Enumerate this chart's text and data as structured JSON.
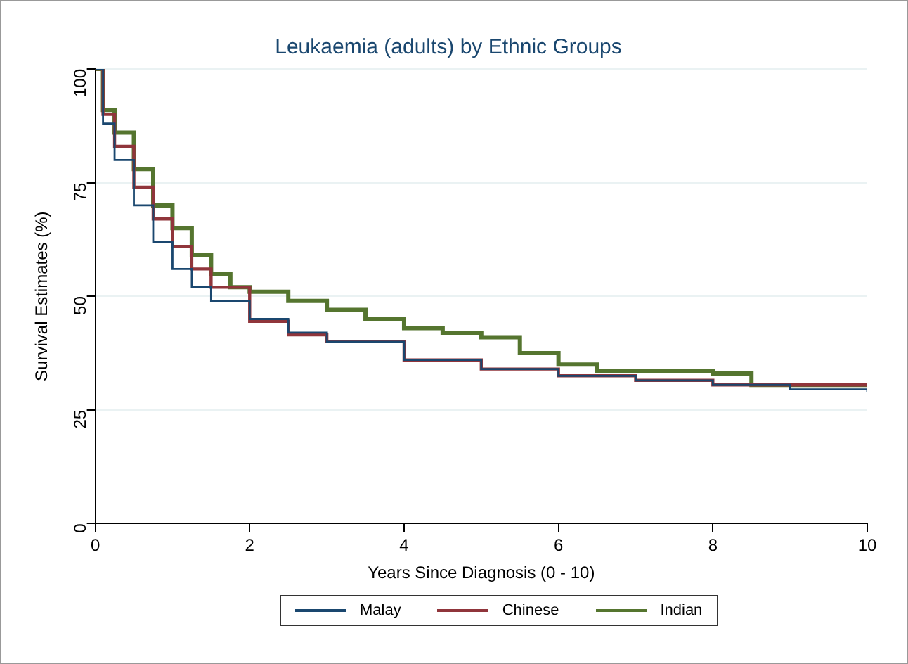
{
  "chart_data": {
    "type": "step",
    "title": "Leukaemia (adults) by Ethnic Groups",
    "xlabel": "Years Since Diagnosis (0 - 10)",
    "ylabel": "Survival Estimates (%)",
    "xlim": [
      0,
      10
    ],
    "xticks": [
      0,
      2,
      4,
      6,
      8,
      10
    ],
    "ylim": [
      0,
      100
    ],
    "yticks": [
      0,
      25,
      50,
      75,
      100
    ],
    "grid": "y",
    "legend": "bottom",
    "marker": "none",
    "series": [
      {
        "name": "Malay",
        "color": "#1a476f",
        "x": [
          0,
          0.1,
          0.25,
          0.5,
          0.75,
          1,
          1.25,
          1.5,
          2,
          2.5,
          3,
          4,
          5,
          6,
          7,
          8,
          9,
          10
        ],
        "values": [
          100,
          88,
          80,
          70,
          62,
          56,
          52,
          49,
          45,
          42,
          40,
          36,
          34,
          32.5,
          31.5,
          30.5,
          29.5,
          29
        ]
      },
      {
        "name": "Chinese",
        "color": "#90353b",
        "x": [
          0,
          0.1,
          0.25,
          0.5,
          0.75,
          1,
          1.25,
          1.5,
          2,
          2.5,
          3,
          4,
          5,
          6,
          7,
          8,
          9,
          10
        ],
        "values": [
          100,
          90,
          83,
          74,
          67,
          61,
          56,
          52,
          44.5,
          41.5,
          40,
          36,
          34,
          32.5,
          31.5,
          30.5,
          30.5,
          30.5
        ]
      },
      {
        "name": "Indian",
        "color": "#55752f",
        "x": [
          0,
          0.1,
          0.25,
          0.5,
          0.75,
          1,
          1.25,
          1.5,
          1.75,
          2,
          2.5,
          3,
          3.5,
          4,
          4.5,
          5,
          5.5,
          6,
          6.5,
          7,
          8,
          8.5,
          8.5,
          10
        ],
        "values": [
          100,
          91,
          86,
          78,
          70,
          65,
          59,
          55,
          52,
          51,
          49,
          47,
          45,
          43,
          42,
          41,
          37.5,
          35,
          33.5,
          33.5,
          33,
          33,
          30.5,
          30.5
        ]
      }
    ]
  }
}
